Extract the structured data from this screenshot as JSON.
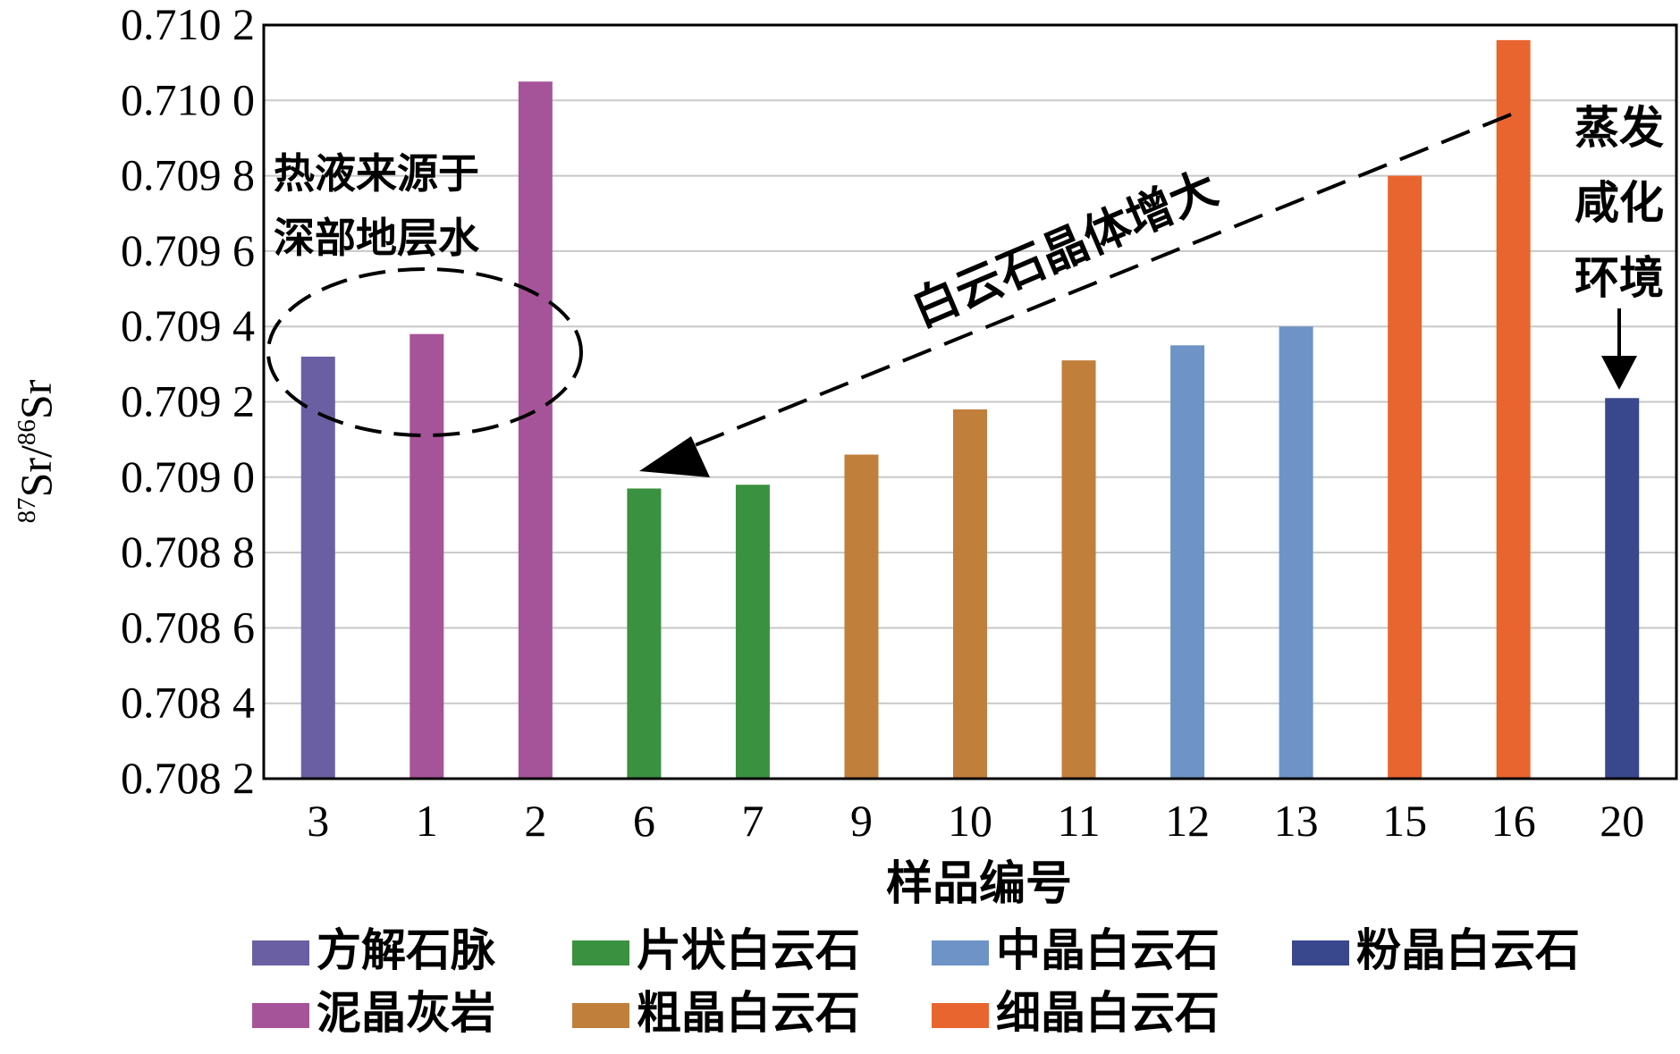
{
  "chart_data": {
    "type": "bar",
    "categories": [
      "3",
      "1",
      "2",
      "6",
      "7",
      "9",
      "10",
      "11",
      "12",
      "13",
      "15",
      "16",
      "20"
    ],
    "values": [
      0.70932,
      0.70938,
      0.71005,
      0.70897,
      0.70898,
      0.70906,
      0.70918,
      0.70931,
      0.70935,
      0.7094,
      0.7098,
      0.71016,
      0.70921
    ],
    "groups": [
      "方解石脉",
      "泥晶灰岩",
      "泥晶灰岩",
      "片状白云石",
      "片状白云石",
      "粗晶白云石",
      "粗晶白云石",
      "粗晶白云石",
      "中晶白云石",
      "中晶白云石",
      "细晶白云石",
      "细晶白云石",
      "粉晶白云石"
    ],
    "ylim": [
      0.7082,
      0.7102
    ],
    "yticks": [
      "0.708 2",
      "0.708 4",
      "0.708 6",
      "0.708 8",
      "0.709 0",
      "0.709 2",
      "0.709 4",
      "0.709 6",
      "0.709 8",
      "0.710 0",
      "0.710 2"
    ],
    "xlabel": "样品编号",
    "ylabel": {
      "sup1": "87",
      "part1": "Sr/",
      "sup2": "86",
      "part2": "Sr"
    },
    "grid": true,
    "legend_position": "bottom",
    "legend": [
      {
        "name": "方解石脉",
        "color": "#6a5fa3"
      },
      {
        "name": "片状白云石",
        "color": "#3a913f"
      },
      {
        "name": "中晶白云石",
        "color": "#6e94c7"
      },
      {
        "name": "粉晶白云石",
        "color": "#39478c"
      },
      {
        "name": "泥晶灰岩",
        "color": "#a65499"
      },
      {
        "name": "粗晶白云石",
        "color": "#c17f3c"
      },
      {
        "name": "细晶白云石",
        "color": "#e96530"
      }
    ],
    "annotations": {
      "left_line1": "热液来源于",
      "left_line2": "深部地层水",
      "arrow_text": "白云石晶体增大",
      "right_line1": "蒸发",
      "right_line2": "咸化",
      "right_line3": "环境"
    }
  }
}
